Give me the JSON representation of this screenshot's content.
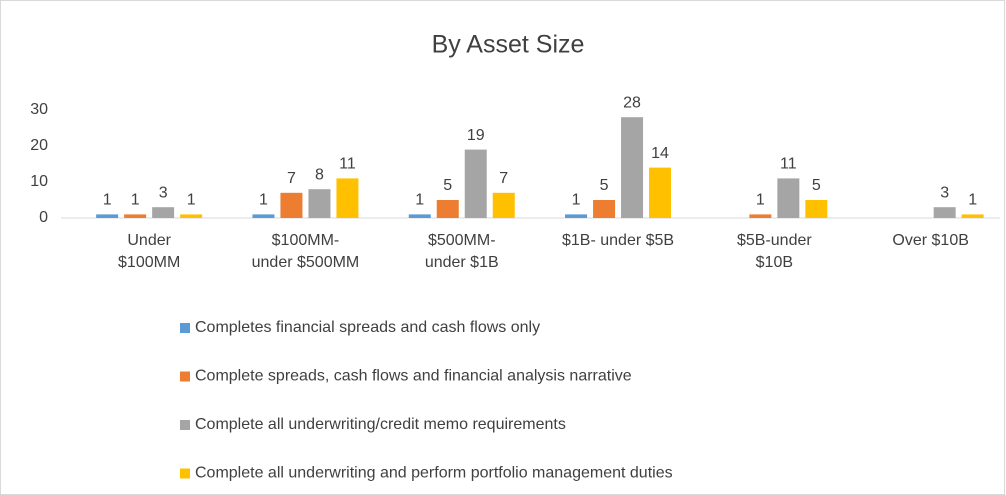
{
  "chart_data": {
    "type": "bar",
    "title": "By Asset Size",
    "categories": [
      "Under\n$100MM",
      "$100MM-\nunder $500MM",
      "$500MM-\nunder $1B",
      "$1B- under $5B",
      "$5B-under\n$10B",
      "Over $10B"
    ],
    "series": [
      {
        "name": "Completes financial spreads and cash flows only",
        "color": "#5b9bd5",
        "values": [
          1,
          1,
          1,
          1,
          null,
          null
        ]
      },
      {
        "name": "Complete spreads, cash flows and financial analysis narrative",
        "color": "#ed7d31",
        "values": [
          1,
          7,
          5,
          5,
          1,
          null
        ]
      },
      {
        "name": "Complete all underwriting/credit memo requirements",
        "color": "#a5a5a5",
        "values": [
          3,
          8,
          19,
          28,
          11,
          3
        ]
      },
      {
        "name": "Complete all underwriting and perform portfolio management duties",
        "color": "#ffc000",
        "values": [
          1,
          11,
          7,
          14,
          5,
          1
        ]
      }
    ],
    "ylim": [
      0,
      30
    ],
    "yticks": [
      0,
      10,
      20,
      30
    ],
    "grid": false,
    "legend": "bottom"
  }
}
